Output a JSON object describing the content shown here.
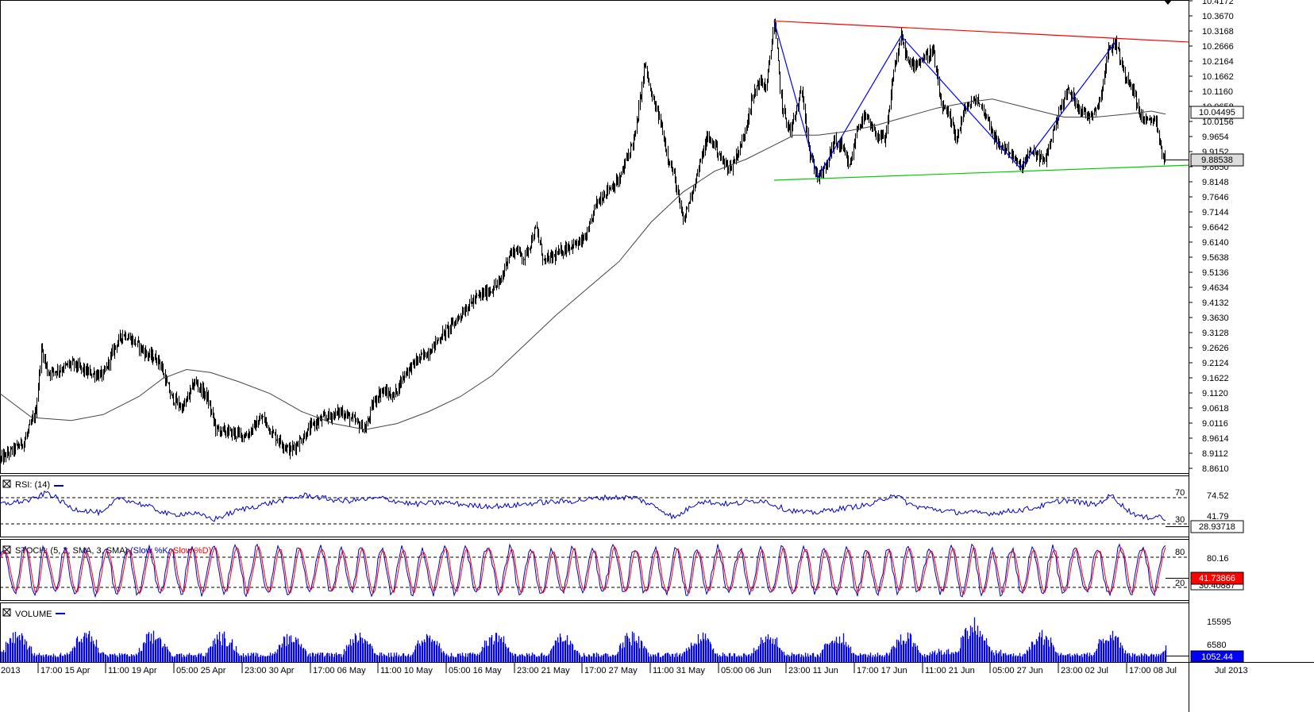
{
  "chart_data": [
    {
      "type": "candlestick",
      "panel": "price",
      "y_ticks": [
        "10.4172",
        "10.3670",
        "10.3168",
        "10.2666",
        "10.2164",
        "10.1662",
        "10.1160",
        "10.0658",
        "10.0156",
        "9.9654",
        "9.9152",
        "9.8650",
        "9.8148",
        "9.7646",
        "9.7144",
        "9.6642",
        "9.6140",
        "9.5638",
        "9.5136",
        "9.4634",
        "9.4132",
        "9.3630",
        "9.3128",
        "9.2626",
        "9.2124",
        "9.1622",
        "9.1120",
        "9.0618",
        "9.0116",
        "8.9614",
        "8.9112",
        "8.8610"
      ],
      "ylim": [
        8.861,
        10.4172
      ],
      "last_price": "9.88538",
      "ma_value": "10.04495",
      "series": [
        {
          "name": "price",
          "points": [
            [
              0,
              8.89
            ],
            [
              30,
              8.95
            ],
            [
              45,
              9.05
            ],
            [
              52,
              9.26
            ],
            [
              60,
              9.18
            ],
            [
              75,
              9.19
            ],
            [
              90,
              9.21
            ],
            [
              110,
              9.18
            ],
            [
              130,
              9.17
            ],
            [
              145,
              9.27
            ],
            [
              155,
              9.31
            ],
            [
              170,
              9.28
            ],
            [
              185,
              9.24
            ],
            [
              200,
              9.22
            ],
            [
              215,
              9.1
            ],
            [
              230,
              9.06
            ],
            [
              245,
              9.15
            ],
            [
              260,
              9.1
            ],
            [
              272,
              8.99
            ],
            [
              290,
              8.98
            ],
            [
              310,
              8.97
            ],
            [
              330,
              9.03
            ],
            [
              345,
              8.97
            ],
            [
              365,
              8.92
            ],
            [
              380,
              8.96
            ],
            [
              395,
              9.01
            ],
            [
              410,
              9.03
            ],
            [
              430,
              9.05
            ],
            [
              445,
              9.02
            ],
            [
              460,
              8.99
            ],
            [
              470,
              9.08
            ],
            [
              480,
              9.12
            ],
            [
              495,
              9.1
            ],
            [
              510,
              9.18
            ],
            [
              525,
              9.22
            ],
            [
              540,
              9.25
            ],
            [
              555,
              9.3
            ],
            [
              570,
              9.34
            ],
            [
              585,
              9.39
            ],
            [
              600,
              9.43
            ],
            [
              615,
              9.45
            ],
            [
              630,
              9.48
            ],
            [
              640,
              9.57
            ],
            [
              650,
              9.59
            ],
            [
              660,
              9.56
            ],
            [
              675,
              9.66
            ],
            [
              685,
              9.55
            ],
            [
              700,
              9.57
            ],
            [
              715,
              9.6
            ],
            [
              730,
              9.61
            ],
            [
              740,
              9.64
            ],
            [
              750,
              9.74
            ],
            [
              765,
              9.79
            ],
            [
              780,
              9.82
            ],
            [
              790,
              9.9
            ],
            [
              800,
              9.97
            ],
            [
              812,
              10.21
            ],
            [
              820,
              10.1
            ],
            [
              830,
              10.03
            ],
            [
              840,
              9.91
            ],
            [
              850,
              9.82
            ],
            [
              860,
              9.68
            ],
            [
              870,
              9.77
            ],
            [
              880,
              9.86
            ],
            [
              890,
              9.96
            ],
            [
              900,
              9.94
            ],
            [
              910,
              9.88
            ],
            [
              920,
              9.86
            ],
            [
              935,
              9.95
            ],
            [
              945,
              10.07
            ],
            [
              955,
              10.15
            ],
            [
              965,
              10.13
            ],
            [
              975,
              10.35
            ],
            [
              985,
              10.06
            ],
            [
              995,
              9.98
            ],
            [
              1010,
              10.12
            ],
            [
              1020,
              9.9
            ],
            [
              1030,
              9.83
            ],
            [
              1040,
              9.86
            ],
            [
              1050,
              9.95
            ],
            [
              1060,
              9.93
            ],
            [
              1070,
              9.86
            ],
            [
              1080,
              10.0
            ],
            [
              1090,
              10.03
            ],
            [
              1100,
              9.98
            ],
            [
              1115,
              9.95
            ],
            [
              1125,
              10.18
            ],
            [
              1135,
              10.3
            ],
            [
              1145,
              10.2
            ],
            [
              1160,
              10.22
            ],
            [
              1175,
              10.25
            ],
            [
              1185,
              10.07
            ],
            [
              1195,
              10.03
            ],
            [
              1205,
              9.96
            ],
            [
              1215,
              10.06
            ],
            [
              1230,
              10.09
            ],
            [
              1245,
              10.02
            ],
            [
              1255,
              9.94
            ],
            [
              1270,
              9.92
            ],
            [
              1285,
              9.86
            ],
            [
              1300,
              9.92
            ],
            [
              1315,
              9.88
            ],
            [
              1325,
              9.97
            ],
            [
              1335,
              10.06
            ],
            [
              1345,
              10.12
            ],
            [
              1360,
              10.06
            ],
            [
              1370,
              10.03
            ],
            [
              1385,
              10.08
            ],
            [
              1395,
              10.25
            ],
            [
              1405,
              10.28
            ],
            [
              1415,
              10.18
            ],
            [
              1425,
              10.14
            ],
            [
              1435,
              10.04
            ],
            [
              1445,
              10.01
            ],
            [
              1455,
              10.03
            ],
            [
              1462,
              9.92
            ],
            [
              1468,
              9.89
            ]
          ]
        },
        {
          "name": "MA",
          "points": [
            [
              0,
              9.11
            ],
            [
              40,
              9.03
            ],
            [
              90,
              9.02
            ],
            [
              130,
              9.04
            ],
            [
              175,
              9.1
            ],
            [
              205,
              9.16
            ],
            [
              235,
              9.19
            ],
            [
              265,
              9.18
            ],
            [
              300,
              9.15
            ],
            [
              340,
              9.11
            ],
            [
              380,
              9.05
            ],
            [
              420,
              9.01
            ],
            [
              460,
              8.99
            ],
            [
              500,
              9.01
            ],
            [
              540,
              9.05
            ],
            [
              580,
              9.1
            ],
            [
              620,
              9.17
            ],
            [
              660,
              9.27
            ],
            [
              700,
              9.37
            ],
            [
              740,
              9.46
            ],
            [
              780,
              9.55
            ],
            [
              820,
              9.68
            ],
            [
              860,
              9.78
            ],
            [
              900,
              9.85
            ],
            [
              940,
              9.89
            ],
            [
              970,
              9.93
            ],
            [
              1000,
              9.97
            ],
            [
              1030,
              9.97
            ],
            [
              1060,
              9.98
            ],
            [
              1100,
              10.0
            ],
            [
              1140,
              10.03
            ],
            [
              1180,
              10.06
            ],
            [
              1220,
              10.08
            ],
            [
              1250,
              10.09
            ],
            [
              1280,
              10.07
            ],
            [
              1310,
              10.05
            ],
            [
              1340,
              10.03
            ],
            [
              1380,
              10.03
            ],
            [
              1420,
              10.04
            ],
            [
              1450,
              10.05
            ],
            [
              1468,
              10.04
            ]
          ]
        }
      ],
      "trendlines": [
        {
          "name": "resistance",
          "color": "#ff0000",
          "from": [
            975,
            10.35
          ],
          "to": [
            1497,
            10.28
          ]
        },
        {
          "name": "support",
          "color": "#00cc00",
          "from": [
            975,
            9.82
          ],
          "to": [
            1497,
            9.87
          ]
        }
      ],
      "zigzag": {
        "color": "#0000ff",
        "points": [
          [
            975,
            10.35
          ],
          [
            1030,
            9.83
          ],
          [
            1135,
            10.3
          ],
          [
            1285,
            9.86
          ],
          [
            1405,
            10.28
          ]
        ]
      }
    },
    {
      "type": "line",
      "panel": "rsi",
      "title": "RSI: (14)",
      "levels": [
        "70",
        "30"
      ],
      "ylim": [
        0,
        100
      ],
      "y_ticks": [
        "74.52",
        "41.79"
      ],
      "last_value": "28.93718",
      "series": [
        {
          "name": "RSI",
          "color": "#0000cc",
          "points": [
            [
              0,
              55
            ],
            [
              40,
              62
            ],
            [
              60,
              75
            ],
            [
              90,
              48
            ],
            [
              130,
              40
            ],
            [
              150,
              66
            ],
            [
              185,
              52
            ],
            [
              215,
              37
            ],
            [
              240,
              41
            ],
            [
              270,
              30
            ],
            [
              300,
              45
            ],
            [
              350,
              60
            ],
            [
              385,
              70
            ],
            [
              430,
              60
            ],
            [
              480,
              65
            ],
            [
              520,
              55
            ],
            [
              560,
              58
            ],
            [
              600,
              52
            ],
            [
              640,
              52
            ],
            [
              680,
              58
            ],
            [
              720,
              60
            ],
            [
              760,
              66
            ],
            [
              800,
              66
            ],
            [
              830,
              48
            ],
            [
              850,
              32
            ],
            [
              880,
              60
            ],
            [
              920,
              55
            ],
            [
              960,
              62
            ],
            [
              990,
              46
            ],
            [
              1020,
              40
            ],
            [
              1060,
              48
            ],
            [
              1100,
              55
            ],
            [
              1125,
              72
            ],
            [
              1150,
              52
            ],
            [
              1200,
              42
            ],
            [
              1250,
              40
            ],
            [
              1300,
              48
            ],
            [
              1340,
              62
            ],
            [
              1380,
              54
            ],
            [
              1400,
              70
            ],
            [
              1420,
              45
            ],
            [
              1440,
              32
            ],
            [
              1460,
              36
            ],
            [
              1468,
              29
            ]
          ]
        }
      ]
    },
    {
      "type": "line",
      "panel": "stoch",
      "title": "STOCH: (5, 3, SMA, 3, SMA)",
      "legend": [
        {
          "name": "Slow %K",
          "color": "#0000cc"
        },
        {
          "name": "Slow %D",
          "color": "#ff0000"
        }
      ],
      "levels": [
        "80",
        "20"
      ],
      "ylim": [
        0,
        100
      ],
      "y_ticks": [
        "80.16"
      ],
      "last_value": "41.73866",
      "last_value_2": "30.40887"
    },
    {
      "type": "bar",
      "panel": "volume",
      "title": "VOLUME",
      "color": "#0000ff",
      "y_ticks": [
        "15595",
        "6580"
      ],
      "last_value": "1052.44"
    }
  ],
  "x_labels": [
    "2013",
    "17:00 15 Apr",
    "11:00 19 Apr",
    "05:00 25 Apr",
    "23:00 30 Apr",
    "17:00 06 May",
    "11:00 10 May",
    "05:00 16 May",
    "23:00 21 May",
    "17:00 27 May",
    "11:00 31 May",
    "05:00 06 Jun",
    "23:00 11 Jun",
    "17:00 17 Jun",
    "11:00 21 Jun",
    "05:00 27 Jun",
    "23:00 02 Jul",
    "17:00 08 Jul",
    "Jul 2013"
  ]
}
